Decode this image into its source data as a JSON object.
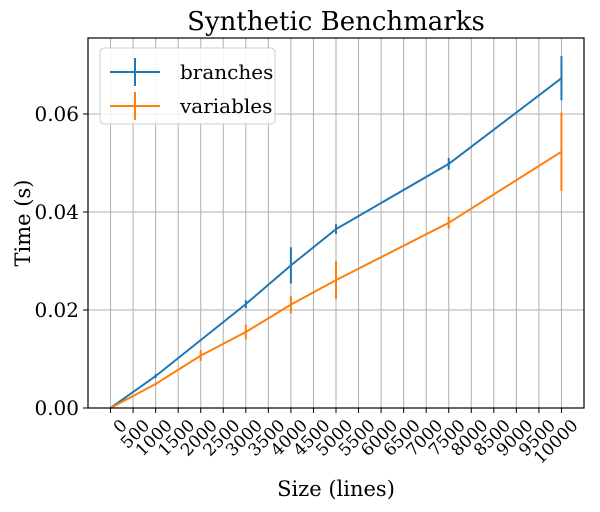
{
  "chart_data": {
    "type": "line",
    "title": "Synthetic Benchmarks",
    "xlabel": "Size (lines)",
    "ylabel": "Time (s)",
    "xlim": [
      -500,
      10500
    ],
    "ylim": [
      0,
      0.0755
    ],
    "x_ticks": [
      0,
      500,
      1000,
      1500,
      2000,
      2500,
      3000,
      3500,
      4000,
      4500,
      5000,
      5500,
      6000,
      6500,
      7000,
      7500,
      8000,
      8500,
      9000,
      9500,
      10000
    ],
    "x_tick_labels": [
      "0",
      "500",
      "1000",
      "1500",
      "2000",
      "2500",
      "3000",
      "3500",
      "4000",
      "4500",
      "5000",
      "5500",
      "6000",
      "6500",
      "7000",
      "7500",
      "8000",
      "8500",
      "9000",
      "9500",
      "10000"
    ],
    "y_ticks": [
      0,
      0.02,
      0.04,
      0.06
    ],
    "y_tick_labels": [
      "0.00",
      "0.02",
      "0.04",
      "0.06"
    ],
    "grid": true,
    "legend_position": "top-left",
    "series": [
      {
        "name": "branches",
        "color": "#1f77b4",
        "x": [
          0,
          1000,
          3000,
          4000,
          5000,
          7500,
          10000
        ],
        "y": [
          0.0,
          0.0065,
          0.0212,
          0.0291,
          0.0365,
          0.0498,
          0.0673
        ],
        "err": [
          0.0002,
          0.0004,
          0.0008,
          0.0037,
          0.001,
          0.0012,
          0.0045
        ]
      },
      {
        "name": "variables",
        "color": "#ff7f0e",
        "x": [
          0,
          1000,
          2000,
          3000,
          4000,
          5000,
          7500,
          10000
        ],
        "y": [
          0.0,
          0.0049,
          0.0107,
          0.0155,
          0.0211,
          0.0261,
          0.0378,
          0.0523
        ],
        "err": [
          0.0002,
          0.0003,
          0.0011,
          0.0015,
          0.0018,
          0.0039,
          0.0012,
          0.008
        ]
      }
    ]
  }
}
